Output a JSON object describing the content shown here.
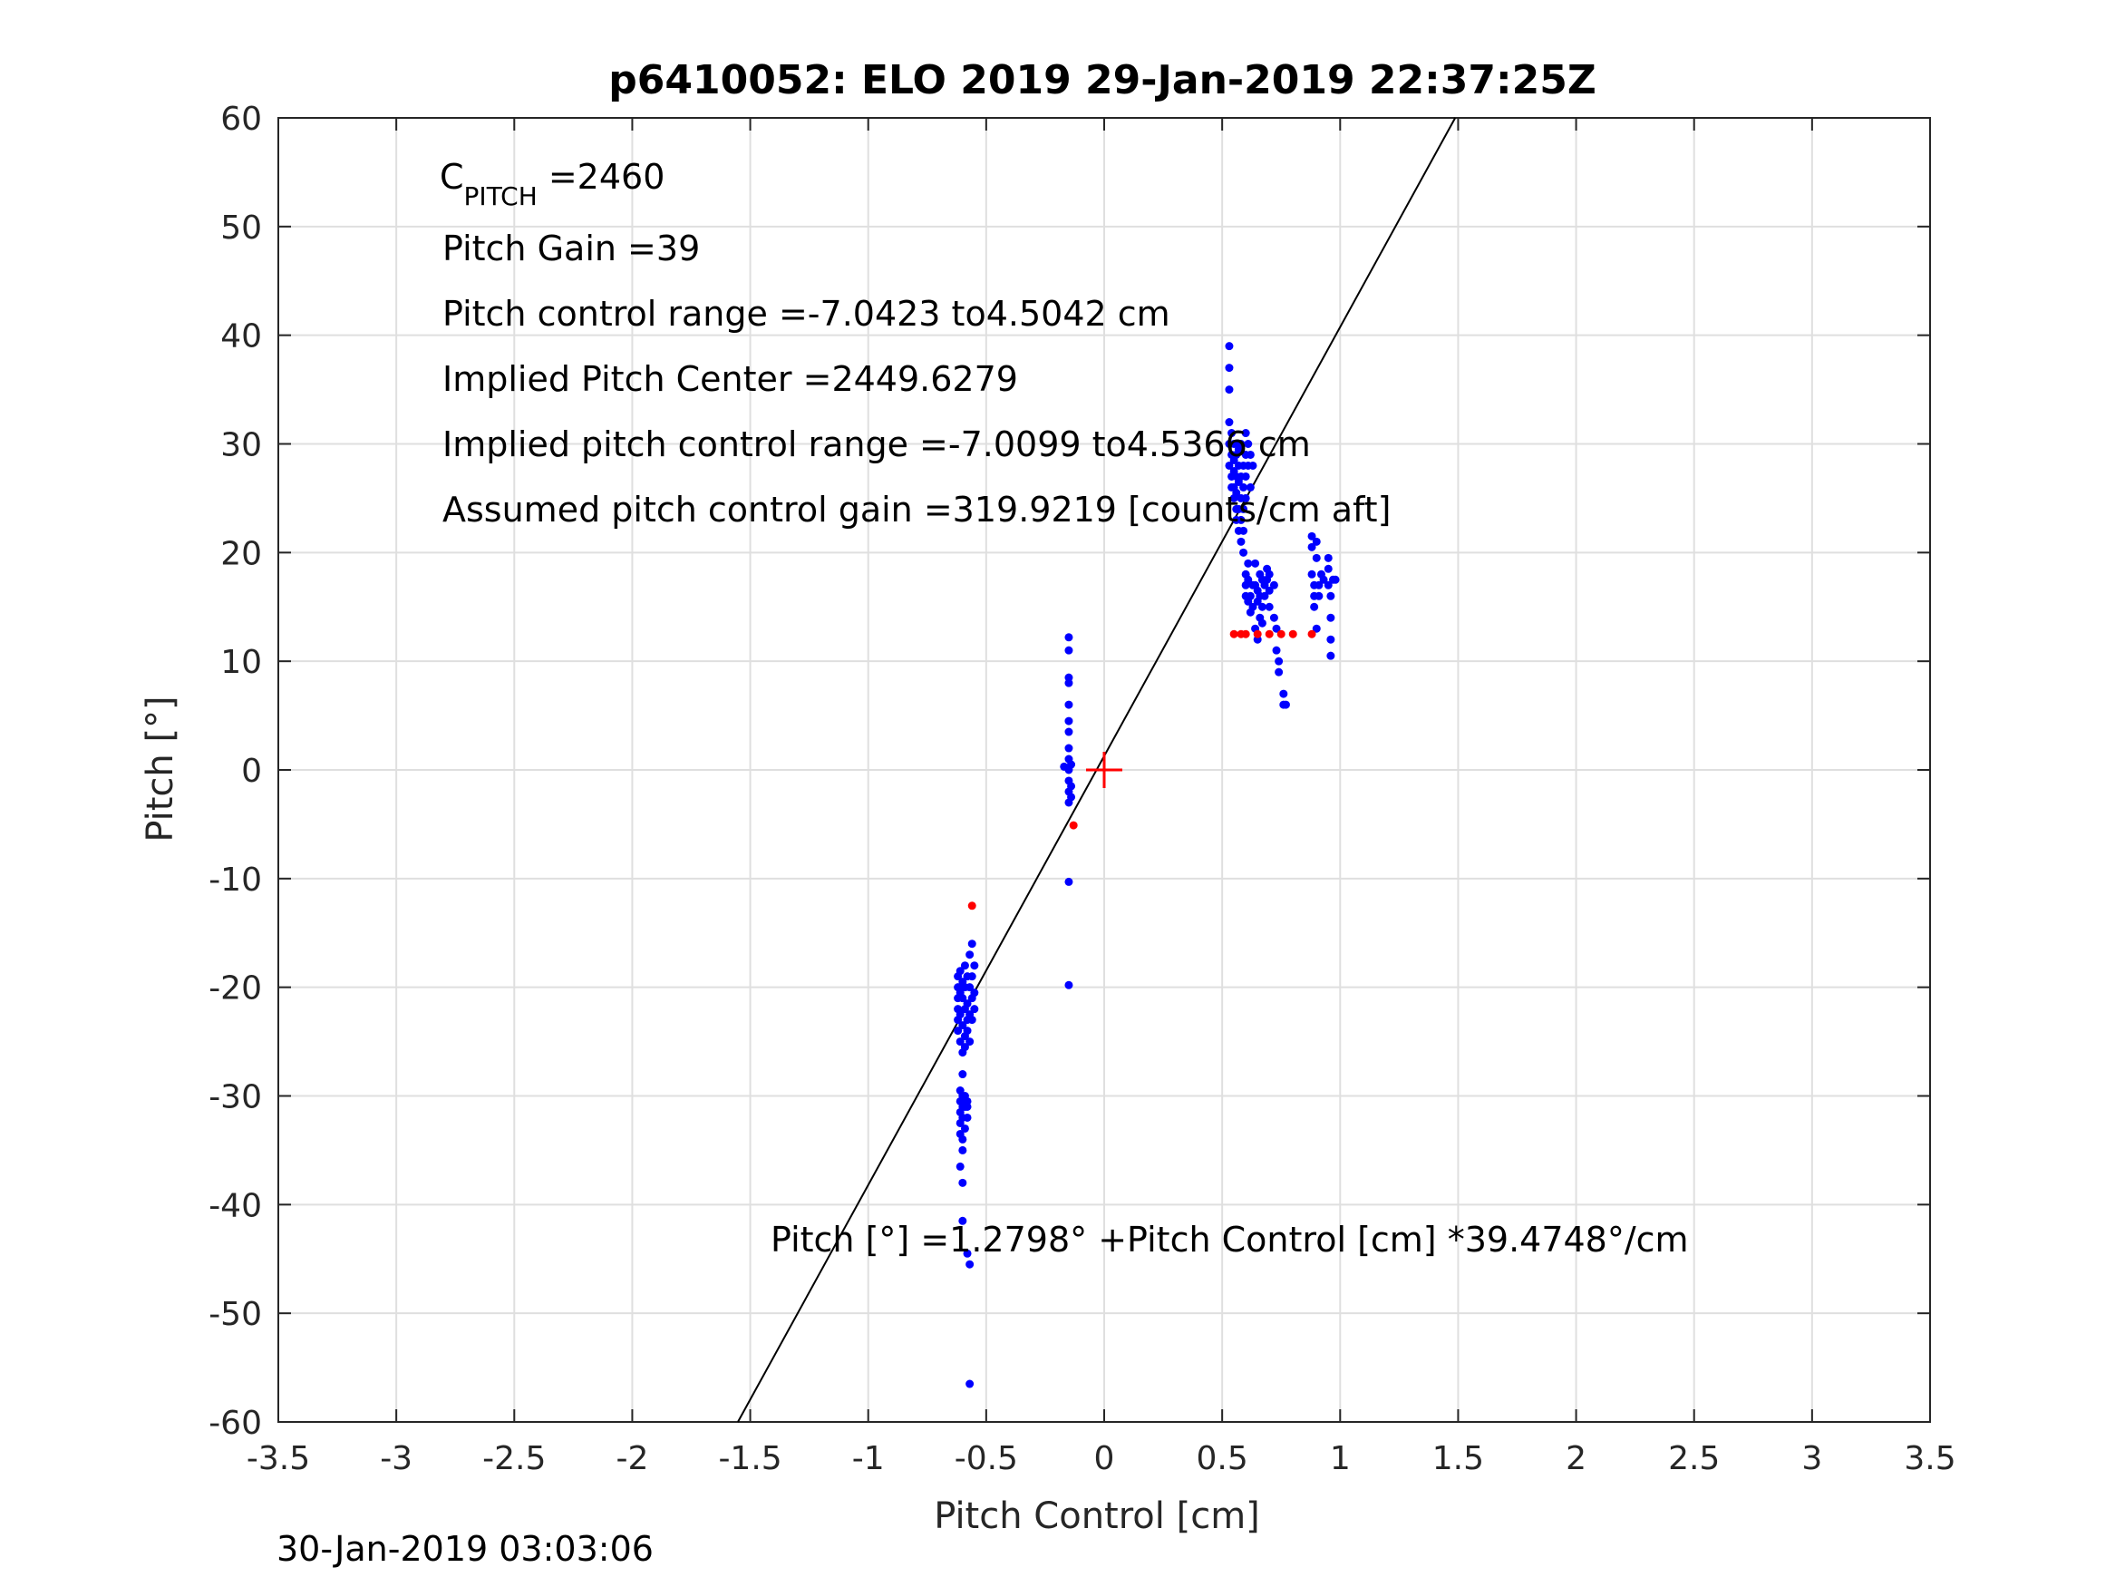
{
  "chart_data": {
    "type": "scatter",
    "title": "p6410052: ELO 2019 29-Jan-2019 22:37:25Z",
    "xlabel": "Pitch Control [cm]",
    "ylabel": "Pitch [°]",
    "xlim": [
      -3.5,
      3.5
    ],
    "ylim": [
      -60,
      60
    ],
    "x_ticks": [
      -3.5,
      -3,
      -2.5,
      -2,
      -1.5,
      -1,
      -0.5,
      0,
      0.5,
      1,
      1.5,
      2,
      2.5,
      3,
      3.5
    ],
    "y_ticks": [
      -60,
      -50,
      -40,
      -30,
      -20,
      -10,
      0,
      10,
      20,
      30,
      40,
      50,
      60
    ],
    "grid": true,
    "footer": "30-Jan-2019 03:03:06",
    "annotations": {
      "c_pitch_main": "C",
      "c_pitch_sub": "PITCH",
      "c_pitch_value": " =2460",
      "pitch_gain": "Pitch Gain =39",
      "pitch_control_range": "Pitch control range =-7.0423 to4.5042 cm",
      "implied_pitch_center": "Implied Pitch Center =2449.6279",
      "implied_pitch_control_range": "Implied pitch control range =-7.0099 to4.5366 cm",
      "assumed_gain": "Assumed pitch control gain =319.9219 [counts/cm aft]",
      "fit_equation": "Pitch [°] =1.2798° +Pitch Control [cm] *39.4748°/cm"
    },
    "fit_line": {
      "intercept": 1.2798,
      "slope": 39.4748
    },
    "center_marker": {
      "x": 0,
      "y": 0,
      "color": "#ff0000"
    },
    "series": [
      {
        "color": "#0000ff",
        "points": [
          [
            -0.62,
            -19
          ],
          [
            -0.62,
            -20
          ],
          [
            -0.62,
            -21
          ],
          [
            -0.62,
            -22
          ],
          [
            -0.62,
            -23
          ],
          [
            -0.62,
            -24
          ],
          [
            -0.61,
            -18.5
          ],
          [
            -0.61,
            -20.5
          ],
          [
            -0.61,
            -22.5
          ],
          [
            -0.61,
            -25
          ],
          [
            -0.6,
            -19.5
          ],
          [
            -0.6,
            -21
          ],
          [
            -0.6,
            -23.5
          ],
          [
            -0.6,
            -26
          ],
          [
            -0.6,
            -28
          ],
          [
            -0.59,
            -18
          ],
          [
            -0.59,
            -20
          ],
          [
            -0.59,
            -22
          ],
          [
            -0.59,
            -24.5
          ],
          [
            -0.59,
            -25.5
          ],
          [
            -0.58,
            -19
          ],
          [
            -0.58,
            -21.5
          ],
          [
            -0.58,
            -23
          ],
          [
            -0.58,
            -24
          ],
          [
            -0.57,
            -17
          ],
          [
            -0.57,
            -20
          ],
          [
            -0.57,
            -22.5
          ],
          [
            -0.57,
            -25
          ],
          [
            -0.56,
            -16
          ],
          [
            -0.56,
            -19
          ],
          [
            -0.56,
            -21
          ],
          [
            -0.56,
            -23
          ],
          [
            -0.55,
            -18
          ],
          [
            -0.55,
            -20.5
          ],
          [
            -0.55,
            -22
          ],
          [
            -0.61,
            -29.5
          ],
          [
            -0.61,
            -30.5
          ],
          [
            -0.61,
            -31.5
          ],
          [
            -0.61,
            -32.5
          ],
          [
            -0.61,
            -33.5
          ],
          [
            -0.6,
            -30
          ],
          [
            -0.6,
            -31
          ],
          [
            -0.6,
            -32
          ],
          [
            -0.6,
            -34
          ],
          [
            -0.6,
            -35
          ],
          [
            -0.59,
            -30
          ],
          [
            -0.59,
            -31
          ],
          [
            -0.59,
            -33
          ],
          [
            -0.58,
            -30.5
          ],
          [
            -0.58,
            -32
          ],
          [
            -0.58,
            -31
          ],
          [
            -0.61,
            -36.5
          ],
          [
            -0.6,
            -38
          ],
          [
            -0.6,
            -41.5
          ],
          [
            -0.58,
            -44.5
          ],
          [
            -0.57,
            -45.5
          ],
          [
            -0.57,
            -56.5
          ],
          [
            -0.15,
            12.2
          ],
          [
            -0.15,
            11
          ],
          [
            -0.15,
            8.5
          ],
          [
            -0.15,
            8
          ],
          [
            -0.15,
            6
          ],
          [
            -0.15,
            4.5
          ],
          [
            -0.15,
            3.5
          ],
          [
            -0.15,
            2
          ],
          [
            -0.15,
            1
          ],
          [
            -0.15,
            0
          ],
          [
            -0.15,
            -1
          ],
          [
            -0.15,
            -2
          ],
          [
            -0.15,
            -3
          ],
          [
            -0.14,
            0.5
          ],
          [
            -0.14,
            -1.5
          ],
          [
            -0.14,
            -2.5
          ],
          [
            -0.17,
            0.3
          ],
          [
            -0.15,
            -10.3
          ],
          [
            -0.15,
            -19.8
          ],
          [
            0.53,
            39
          ],
          [
            0.53,
            37
          ],
          [
            0.53,
            35
          ],
          [
            0.53,
            32
          ],
          [
            0.53,
            30
          ],
          [
            0.53,
            28
          ],
          [
            0.54,
            31
          ],
          [
            0.54,
            29
          ],
          [
            0.54,
            27
          ],
          [
            0.54,
            26
          ],
          [
            0.55,
            30
          ],
          [
            0.55,
            28.5
          ],
          [
            0.55,
            27.5
          ],
          [
            0.55,
            26
          ],
          [
            0.55,
            25
          ],
          [
            0.56,
            29
          ],
          [
            0.56,
            27
          ],
          [
            0.56,
            25.5
          ],
          [
            0.56,
            24
          ],
          [
            0.56,
            23
          ],
          [
            0.57,
            29.5
          ],
          [
            0.57,
            28
          ],
          [
            0.57,
            26.5
          ],
          [
            0.57,
            24
          ],
          [
            0.57,
            22
          ],
          [
            0.58,
            30
          ],
          [
            0.58,
            27
          ],
          [
            0.58,
            25
          ],
          [
            0.58,
            23
          ],
          [
            0.58,
            21
          ],
          [
            0.59,
            28
          ],
          [
            0.59,
            26
          ],
          [
            0.59,
            24
          ],
          [
            0.59,
            22
          ],
          [
            0.59,
            20
          ],
          [
            0.6,
            31
          ],
          [
            0.6,
            29
          ],
          [
            0.6,
            27
          ],
          [
            0.6,
            25
          ],
          [
            0.6,
            18
          ],
          [
            0.6,
            17
          ],
          [
            0.6,
            16
          ],
          [
            0.61,
            30
          ],
          [
            0.61,
            28
          ],
          [
            0.61,
            19
          ],
          [
            0.61,
            17.5
          ],
          [
            0.61,
            15.5
          ],
          [
            0.62,
            29
          ],
          [
            0.62,
            26
          ],
          [
            0.62,
            16
          ],
          [
            0.62,
            14.5
          ],
          [
            0.63,
            28
          ],
          [
            0.63,
            17
          ],
          [
            0.63,
            15
          ],
          [
            0.64,
            19
          ],
          [
            0.64,
            17
          ],
          [
            0.64,
            13
          ],
          [
            0.65,
            16.5
          ],
          [
            0.65,
            15.5
          ],
          [
            0.65,
            12
          ],
          [
            0.66,
            18
          ],
          [
            0.66,
            16
          ],
          [
            0.66,
            14
          ],
          [
            0.67,
            17.5
          ],
          [
            0.67,
            15
          ],
          [
            0.67,
            13.5
          ],
          [
            0.68,
            17
          ],
          [
            0.68,
            16
          ],
          [
            0.69,
            18.5
          ],
          [
            0.69,
            17.5
          ],
          [
            0.7,
            18
          ],
          [
            0.7,
            16.5
          ],
          [
            0.7,
            15
          ],
          [
            0.72,
            17
          ],
          [
            0.72,
            14
          ],
          [
            0.73,
            13
          ],
          [
            0.73,
            11
          ],
          [
            0.74,
            10
          ],
          [
            0.74,
            9
          ],
          [
            0.76,
            7
          ],
          [
            0.76,
            6
          ],
          [
            0.77,
            6
          ],
          [
            0.88,
            21.5
          ],
          [
            0.88,
            20.5
          ],
          [
            0.88,
            18
          ],
          [
            0.89,
            17
          ],
          [
            0.89,
            16
          ],
          [
            0.89,
            15
          ],
          [
            0.9,
            21
          ],
          [
            0.9,
            19.5
          ],
          [
            0.9,
            13
          ],
          [
            0.91,
            17
          ],
          [
            0.91,
            16
          ],
          [
            0.92,
            18
          ],
          [
            0.93,
            17.5
          ],
          [
            0.95,
            19.5
          ],
          [
            0.95,
            18.5
          ],
          [
            0.95,
            17
          ],
          [
            0.96,
            16
          ],
          [
            0.96,
            14
          ],
          [
            0.96,
            12
          ],
          [
            0.96,
            10.5
          ],
          [
            0.97,
            17.5
          ],
          [
            0.98,
            17.5
          ]
        ]
      },
      {
        "color": "#ff0000",
        "points": [
          [
            -0.56,
            -12.5
          ],
          [
            -0.13,
            -5.1
          ],
          [
            0.55,
            12.5
          ],
          [
            0.58,
            12.5
          ],
          [
            0.6,
            12.5
          ],
          [
            0.65,
            12.5
          ],
          [
            0.7,
            12.5
          ],
          [
            0.75,
            12.5
          ],
          [
            0.8,
            12.5
          ],
          [
            0.88,
            12.5
          ]
        ]
      }
    ]
  }
}
